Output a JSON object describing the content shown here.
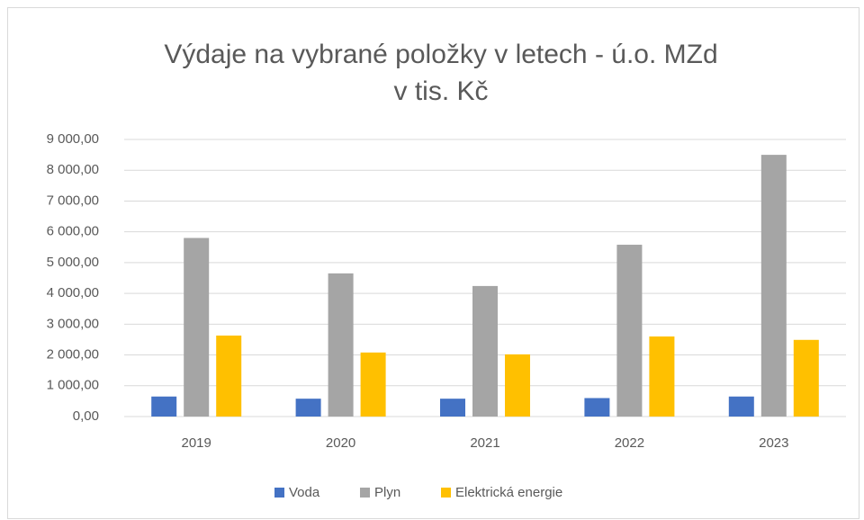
{
  "chart_data": {
    "type": "bar",
    "title": "Výdaje na vybrané položky v letech - ú.o. MZd",
    "subtitle": "v tis. Kč",
    "categories": [
      "2019",
      "2020",
      "2021",
      "2022",
      "2023"
    ],
    "series": [
      {
        "name": "Voda",
        "color": "#4472c4",
        "values": [
          650,
          580,
          580,
          600,
          650
        ]
      },
      {
        "name": "Plyn",
        "color": "#a5a5a5",
        "values": [
          5800,
          4650,
          4240,
          5580,
          8500
        ]
      },
      {
        "name": "Elektrická energie",
        "color": "#ffc000",
        "values": [
          2630,
          2080,
          2020,
          2600,
          2490
        ]
      }
    ],
    "ylim": [
      0,
      9000
    ],
    "yticks": [
      {
        "value": 0,
        "label": "0,00"
      },
      {
        "value": 1000,
        "label": "1 000,00"
      },
      {
        "value": 2000,
        "label": "2 000,00"
      },
      {
        "value": 3000,
        "label": "3 000,00"
      },
      {
        "value": 4000,
        "label": "4 000,00"
      },
      {
        "value": 5000,
        "label": "5 000,00"
      },
      {
        "value": 6000,
        "label": "6 000,00"
      },
      {
        "value": 7000,
        "label": "7 000,00"
      },
      {
        "value": 8000,
        "label": "8 000,00"
      },
      {
        "value": 9000,
        "label": "9 000,00"
      }
    ],
    "grid": true,
    "legend": "bottom"
  }
}
